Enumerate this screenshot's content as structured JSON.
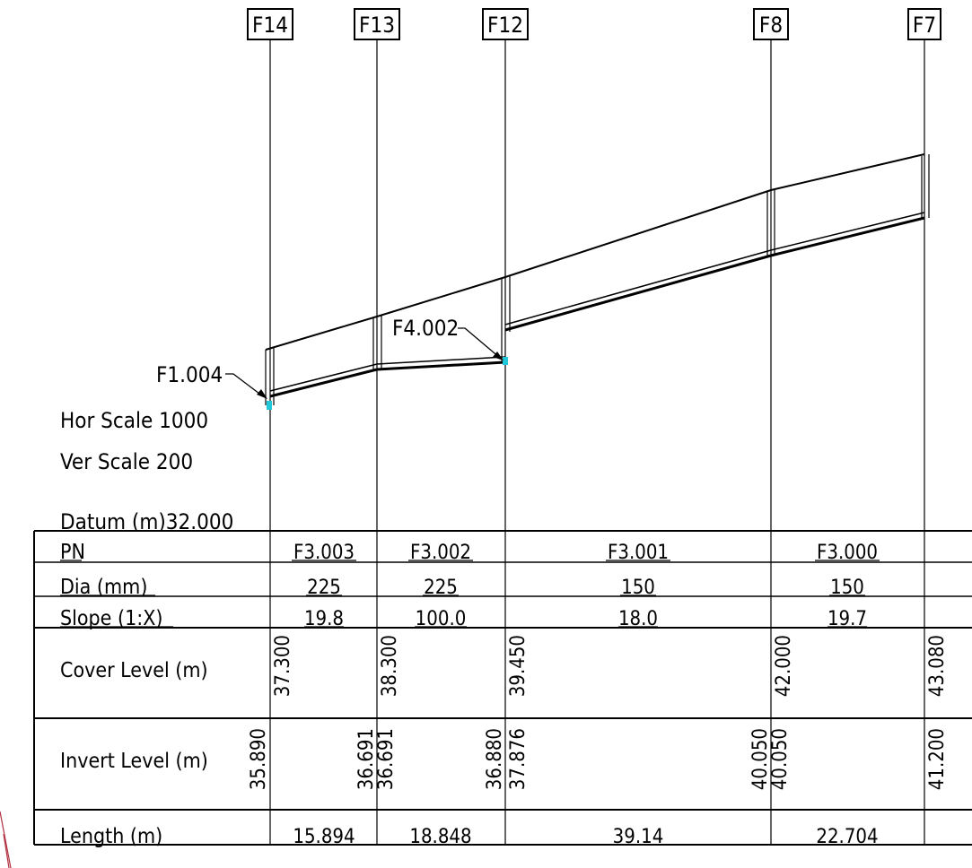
{
  "manholes": [
    {
      "id": "F14",
      "cover_level": "37.300",
      "invert_levels": [
        "35.890"
      ]
    },
    {
      "id": "F13",
      "cover_level": "38.300",
      "invert_levels": [
        "36.691",
        "36.691"
      ]
    },
    {
      "id": "F12",
      "cover_level": "39.450",
      "invert_levels": [
        "36.880",
        "37.876"
      ]
    },
    {
      "id": "F8",
      "cover_level": "42.000",
      "invert_levels": [
        "40.050",
        "40.050"
      ]
    },
    {
      "id": "F7",
      "cover_level": "43.080",
      "invert_levels": [
        "41.200"
      ]
    }
  ],
  "pipes": [
    {
      "pn": "F3.003",
      "dia": "225",
      "slope": "19.8",
      "length": "15.894"
    },
    {
      "pn": "F3.002",
      "dia": "225",
      "slope": "100.0",
      "length": "18.848"
    },
    {
      "pn": "F3.001",
      "dia": "150",
      "slope": "18.0",
      "length": "39.14"
    },
    {
      "pn": "F3.000",
      "dia": "150",
      "slope": "19.7",
      "length": "22.704"
    }
  ],
  "connections": [
    "F1.004",
    "F4.002"
  ],
  "scale": {
    "horizontal": "Hor Scale 1000",
    "vertical": "Ver Scale 200",
    "datum": "Datum (m)32.000"
  },
  "table_labels": {
    "pn": "PN",
    "dia": "Dia (mm)",
    "slope": "Slope (1:X)",
    "cover": "Cover Level (m)",
    "invert": "Invert Level (m)",
    "length": "Length (m)"
  }
}
